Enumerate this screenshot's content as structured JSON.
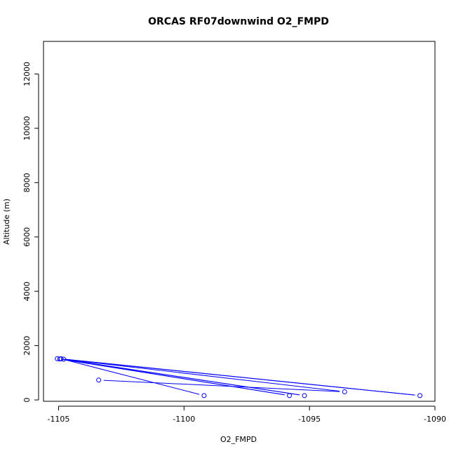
{
  "chart_data": {
    "type": "line",
    "title": "ORCAS RF07downwind O2_FMPD",
    "xlabel": "O2_FMPD",
    "ylabel": "Altitude (m)",
    "xlim": [
      -1105.6,
      -1090.0
    ],
    "ylim": [
      -50,
      13200
    ],
    "xticks": [
      -1105,
      -1100,
      -1095,
      -1090
    ],
    "yticks": [
      0,
      2000,
      4000,
      6000,
      8000,
      10000,
      12000
    ],
    "grid": false,
    "series": [
      {
        "color": "#0000ff",
        "marker": "open-circle",
        "points": [
          {
            "x": -1103.4,
            "y": 730
          },
          {
            "x": -1093.6,
            "y": 300
          },
          {
            "x": -1104.8,
            "y": 1500
          },
          {
            "x": -1095.2,
            "y": 160
          },
          {
            "x": -1104.95,
            "y": 1510
          },
          {
            "x": -1095.8,
            "y": 160
          },
          {
            "x": -1105.05,
            "y": 1520
          },
          {
            "x": -1090.6,
            "y": 160
          },
          {
            "x": -1104.9,
            "y": 1515
          },
          {
            "x": -1099.2,
            "y": 160
          }
        ]
      }
    ]
  }
}
